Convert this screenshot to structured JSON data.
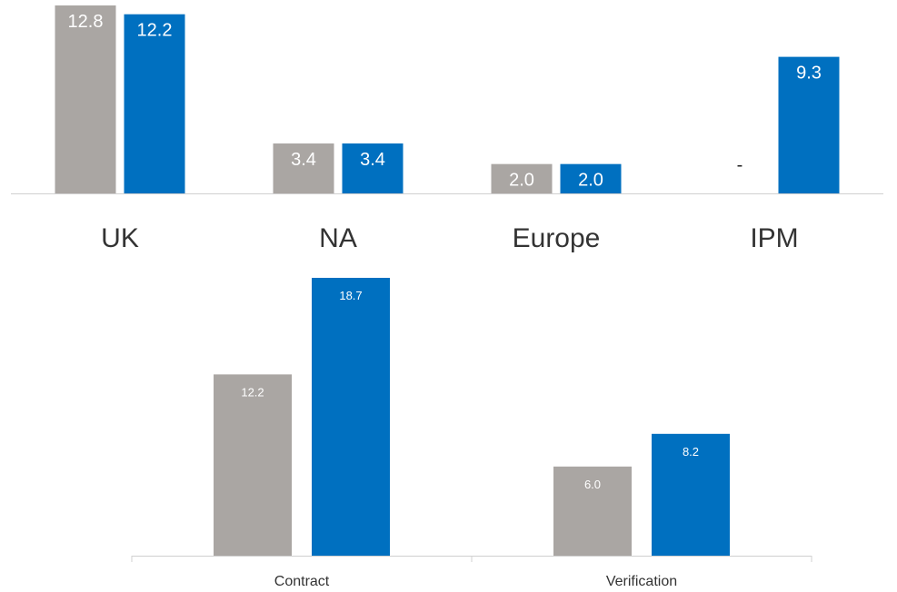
{
  "colors": {
    "prior": "#aaa6a3",
    "current": "#0070c0",
    "axis": "#d0d0d0",
    "category_text": "#333333",
    "label_dark": "#222222",
    "label_light": "#ffffff"
  },
  "chart_data": [
    {
      "type": "bar",
      "categories": [
        "UK",
        "NA",
        "Europe",
        "IPM"
      ],
      "series": [
        {
          "values": [
            12.8,
            3.4,
            2.0,
            null
          ],
          "labels": [
            "12.8",
            "3.4",
            "2.0",
            "-"
          ]
        },
        {
          "values": [
            12.2,
            3.4,
            2.0,
            9.3
          ],
          "labels": [
            "12.2",
            "3.4",
            "2.0",
            "9.3"
          ]
        }
      ],
      "title": "",
      "xlabel": "",
      "ylabel": "",
      "ylim": [
        0,
        12.8
      ],
      "grid": false,
      "legend": "none"
    },
    {
      "type": "bar",
      "categories": [
        "Contract",
        "Verification"
      ],
      "series": [
        {
          "values": [
            12.2,
            6.0
          ],
          "labels": [
            "12.2",
            "6.0"
          ]
        },
        {
          "values": [
            18.7,
            8.2
          ],
          "labels": [
            "18.7",
            "8.2"
          ]
        }
      ],
      "title": "",
      "xlabel": "",
      "ylabel": "",
      "ylim": [
        0,
        18.7
      ],
      "grid": false,
      "legend": "none"
    }
  ]
}
